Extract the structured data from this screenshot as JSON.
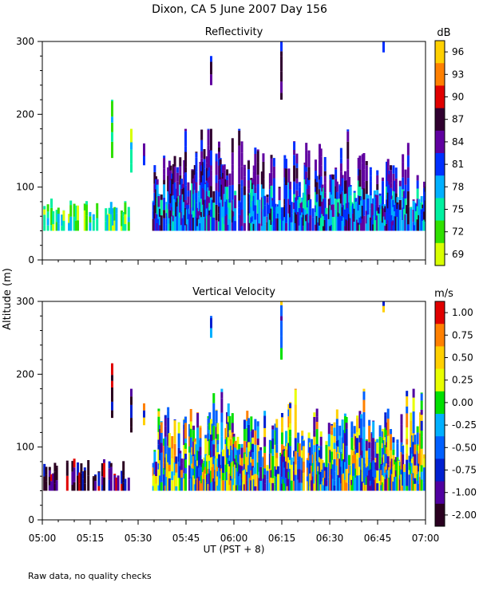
{
  "title": "Dixon, CA  5 June 2007  Day 156",
  "ylabel": "Altitude (m)",
  "xlabel": "UT  (PST + 8)",
  "footnote": "Raw data, no quality checks",
  "chart_data": [
    {
      "type": "heatmap",
      "title": "Reflectivity",
      "colorbar_label": "dB",
      "colorbar_ticks": [
        "96",
        "93",
        "90",
        "87",
        "84",
        "81",
        "78",
        "75",
        "72",
        "69"
      ],
      "colorbar_colors": [
        "#ffd000",
        "#ff8000",
        "#e00000",
        "#300030",
        "#6000a0",
        "#0030ff",
        "#00b0ff",
        "#00f0a0",
        "#30e000",
        "#d8ff00"
      ],
      "x_ticks": [
        "05:00",
        "05:15",
        "05:30",
        "05:45",
        "06:00",
        "06:15",
        "06:30",
        "06:45",
        "07:00"
      ],
      "xlim": [
        0,
        120
      ],
      "xlim_note": "minutes after 05:00 UT",
      "y_ticks": [
        "0",
        "100",
        "200",
        "300"
      ],
      "ylim": [
        0,
        300
      ],
      "ylabel": "Altitude (m)",
      "features": [
        {
          "t": [
            0,
            27
          ],
          "alt": [
            40,
            80
          ],
          "note": "mostly 72-78 dB"
        },
        {
          "t": [
            35,
            120
          ],
          "alt": [
            40,
            140
          ],
          "note": "dense echoes 78-87 dB"
        },
        {
          "t": [
            52,
            53
          ],
          "alt": [
            240,
            280
          ],
          "note": "isolated plume"
        },
        {
          "t": [
            74,
            75
          ],
          "alt": [
            220,
            300
          ],
          "note": "isolated plume, peak ~90 dB"
        },
        {
          "t": [
            106,
            107
          ],
          "alt": [
            285,
            300
          ],
          "note": "isolated plume"
        }
      ]
    },
    {
      "type": "heatmap",
      "title": "Vertical Velocity",
      "colorbar_label": "m/s",
      "colorbar_ticks": [
        "1.00",
        "0.75",
        "0.50",
        "0.25",
        "0.00",
        "-0.25",
        "-0.50",
        "-0.75",
        "-1.00",
        "-2.00"
      ],
      "colorbar_colors": [
        "#e00000",
        "#ff8000",
        "#ffd000",
        "#e8ff00",
        "#00e000",
        "#00b0ff",
        "#0060ff",
        "#0020d0",
        "#5000a0",
        "#2a0020"
      ],
      "x_ticks": [
        "05:00",
        "05:15",
        "05:30",
        "05:45",
        "06:00",
        "06:15",
        "06:30",
        "06:45",
        "07:00"
      ],
      "xlim": [
        0,
        120
      ],
      "xlim_note": "minutes after 05:00 UT",
      "y_ticks": [
        "0",
        "100",
        "200",
        "300"
      ],
      "ylim": [
        0,
        300
      ],
      "ylabel": "Altitude (m)",
      "features": [
        {
          "t": [
            0,
            22
          ],
          "alt": [
            40,
            80
          ],
          "note": "mostly -1.00 to -2.00 m/s"
        },
        {
          "t": [
            35,
            120
          ],
          "alt": [
            40,
            140
          ],
          "note": "mixed -0.75 to +0.50 m/s"
        },
        {
          "t": [
            52,
            53
          ],
          "alt": [
            250,
            280
          ],
          "note": "isolated plume"
        },
        {
          "t": [
            74,
            75
          ],
          "alt": [
            220,
            300
          ],
          "note": "isolated plume"
        },
        {
          "t": [
            106,
            107
          ],
          "alt": [
            285,
            300
          ],
          "note": "isolated plume"
        }
      ]
    }
  ]
}
